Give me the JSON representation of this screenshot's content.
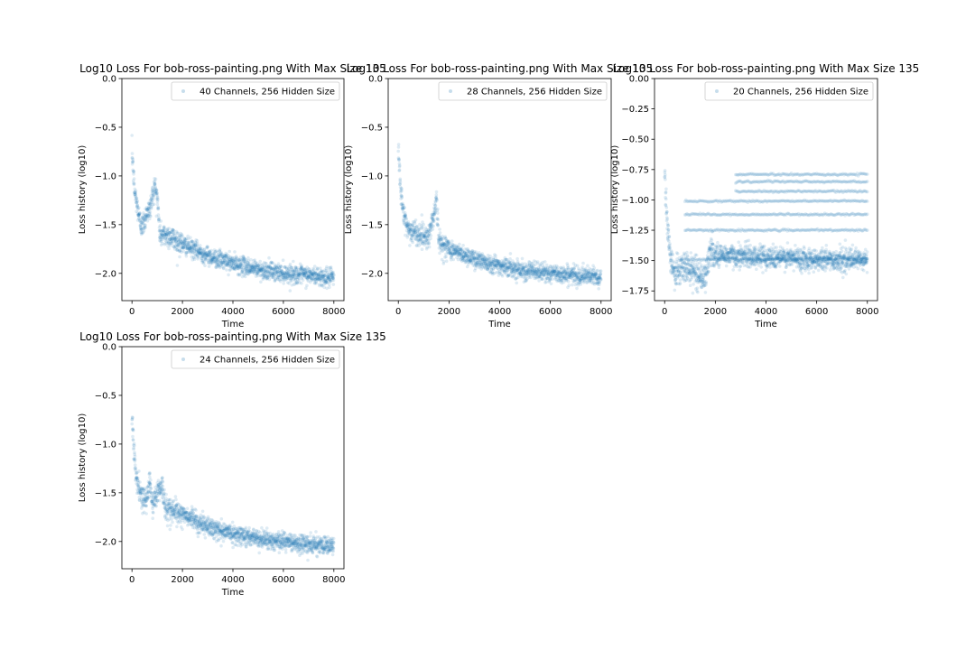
{
  "figure": {
    "background": "#ffffff",
    "point_color": "#1f77b4"
  },
  "chart_data": [
    {
      "type": "scatter",
      "title": "Log10 Loss For bob-ross-painting.png With Max Size 135",
      "xlabel": "Time",
      "ylabel": "Loss history (log10)",
      "xlim": [
        -400,
        8400
      ],
      "ylim": [
        -2.28,
        0.0
      ],
      "xticks": [
        0,
        2000,
        4000,
        6000,
        8000
      ],
      "xtick_labels": [
        "0",
        "2000",
        "4000",
        "6000",
        "8000"
      ],
      "yticks": [
        0.0,
        -0.5,
        -1.0,
        -1.5,
        -2.0
      ],
      "ytick_labels": [
        "0.0",
        "−0.5",
        "−1.0",
        "−1.5",
        "−2.0"
      ],
      "legend": {
        "label": "40 Channels, 256 Hidden Size",
        "location": "top-right"
      },
      "series": [
        {
          "name": "40 Channels, 256 Hidden Size",
          "color": "#1f77b4",
          "alpha": 0.15,
          "points": [
            [
              0,
              -0.75
            ],
            [
              50,
              -0.95
            ],
            [
              100,
              -1.15
            ],
            [
              200,
              -1.3
            ],
            [
              300,
              -1.45
            ],
            [
              400,
              -1.52
            ],
            [
              500,
              -1.45
            ],
            [
              600,
              -1.36
            ],
            [
              700,
              -1.36
            ],
            [
              800,
              -1.22
            ],
            [
              900,
              -1.1
            ],
            [
              1000,
              -1.2
            ],
            [
              1100,
              -1.6
            ],
            [
              1500,
              -1.62
            ],
            [
              2000,
              -1.7
            ],
            [
              2500,
              -1.76
            ],
            [
              3000,
              -1.82
            ],
            [
              4000,
              -1.9
            ],
            [
              5000,
              -1.96
            ],
            [
              6000,
              -2.0
            ],
            [
              7000,
              -2.02
            ],
            [
              8000,
              -2.05
            ]
          ]
        }
      ]
    },
    {
      "type": "scatter",
      "title": "Log10 Loss For bob-ross-painting.png With Max Size 135",
      "xlabel": "Time",
      "ylabel": "Loss history (log10)",
      "xlim": [
        -400,
        8400
      ],
      "ylim": [
        -2.28,
        0.0
      ],
      "xticks": [
        0,
        2000,
        4000,
        6000,
        8000
      ],
      "xtick_labels": [
        "0",
        "2000",
        "4000",
        "6000",
        "8000"
      ],
      "yticks": [
        0.0,
        -0.5,
        -1.0,
        -1.5,
        -2.0
      ],
      "ytick_labels": [
        "0.0",
        "−0.5",
        "−1.0",
        "−1.5",
        "−2.0"
      ],
      "legend": {
        "label": "28 Channels, 256 Hidden Size",
        "location": "top-right"
      },
      "series": [
        {
          "name": "28 Channels, 256 Hidden Size",
          "color": "#1f77b4",
          "alpha": 0.15,
          "points": [
            [
              0,
              -0.75
            ],
            [
              100,
              -1.15
            ],
            [
              200,
              -1.4
            ],
            [
              400,
              -1.55
            ],
            [
              800,
              -1.6
            ],
            [
              1200,
              -1.62
            ],
            [
              1400,
              -1.4
            ],
            [
              1500,
              -1.22
            ],
            [
              1600,
              -1.68
            ],
            [
              2000,
              -1.75
            ],
            [
              3000,
              -1.85
            ],
            [
              4000,
              -1.92
            ],
            [
              5000,
              -1.97
            ],
            [
              6000,
              -2.0
            ],
            [
              7000,
              -2.02
            ],
            [
              8000,
              -2.04
            ]
          ]
        }
      ]
    },
    {
      "type": "scatter",
      "title": "Log10 Loss For bob-ross-painting.png With Max Size 135",
      "xlabel": "Time",
      "ylabel": "Loss history (log10)",
      "xlim": [
        -400,
        8400
      ],
      "ylim": [
        -1.83,
        0.0
      ],
      "xticks": [
        0,
        2000,
        4000,
        6000,
        8000
      ],
      "xtick_labels": [
        "0",
        "2000",
        "4000",
        "6000",
        "8000"
      ],
      "yticks": [
        0.0,
        -0.25,
        -0.5,
        -0.75,
        -1.0,
        -1.25,
        -1.5,
        -1.75
      ],
      "ytick_labels": [
        "0.00",
        "−0.25",
        "−0.50",
        "−0.75",
        "−1.00",
        "−1.25",
        "−1.50",
        "−1.75"
      ],
      "legend": {
        "label": "20 Channels, 256 Hidden Size",
        "location": "top-right"
      },
      "series": [
        {
          "name": "20 Channels, 256 Hidden Size",
          "color": "#1f77b4",
          "alpha": 0.15,
          "points": [
            [
              0,
              -0.75
            ],
            [
              100,
              -1.2
            ],
            [
              200,
              -1.45
            ],
            [
              400,
              -1.6
            ],
            [
              800,
              -1.55
            ],
            [
              1200,
              -1.6
            ],
            [
              1600,
              -1.65
            ],
            [
              1800,
              -1.42
            ],
            [
              2000,
              -1.45
            ],
            [
              4000,
              -1.47
            ],
            [
              6000,
              -1.49
            ],
            [
              8000,
              -1.5
            ]
          ],
          "bands": [
            -0.79,
            -0.85,
            -0.93,
            -1.01,
            -1.12,
            -1.25,
            -1.49
          ]
        }
      ]
    },
    {
      "type": "scatter",
      "title": "Log10 Loss For bob-ross-painting.png With Max Size 135",
      "xlabel": "Time",
      "ylabel": "Loss history (log10)",
      "xlim": [
        -400,
        8400
      ],
      "ylim": [
        -2.28,
        0.0
      ],
      "xticks": [
        0,
        2000,
        4000,
        6000,
        8000
      ],
      "xtick_labels": [
        "0",
        "2000",
        "4000",
        "6000",
        "8000"
      ],
      "yticks": [
        0.0,
        -0.5,
        -1.0,
        -1.5,
        -2.0
      ],
      "ytick_labels": [
        "0.0",
        "−0.5",
        "−1.0",
        "−1.5",
        "−2.0"
      ],
      "legend": {
        "label": "24 Channels, 256 Hidden Size",
        "location": "top-right"
      },
      "series": [
        {
          "name": "24 Channels, 256 Hidden Size",
          "color": "#1f77b4",
          "alpha": 0.15,
          "points": [
            [
              0,
              -0.75
            ],
            [
              100,
              -1.15
            ],
            [
              200,
              -1.4
            ],
            [
              400,
              -1.55
            ],
            [
              600,
              -1.58
            ],
            [
              700,
              -1.35
            ],
            [
              800,
              -1.62
            ],
            [
              1200,
              -1.4
            ],
            [
              1300,
              -1.65
            ],
            [
              2000,
              -1.72
            ],
            [
              3000,
              -1.85
            ],
            [
              4000,
              -1.92
            ],
            [
              5000,
              -1.97
            ],
            [
              6000,
              -2.0
            ],
            [
              7000,
              -2.03
            ],
            [
              8000,
              -2.05
            ]
          ]
        }
      ]
    }
  ]
}
